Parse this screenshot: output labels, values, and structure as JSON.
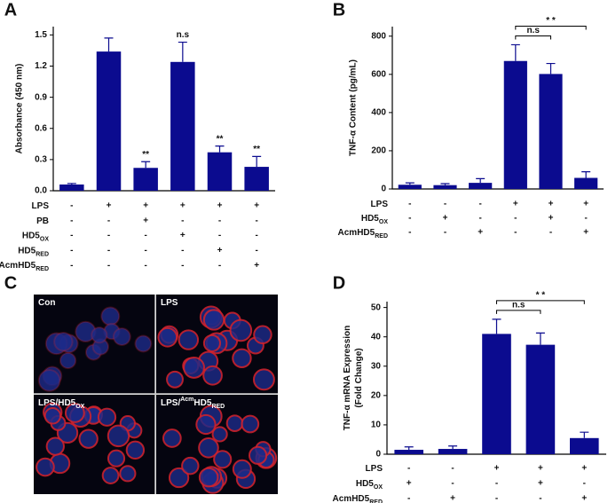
{
  "chart_data": [
    {
      "type": "bar",
      "panel_label": "A",
      "ylabel": [
        "Absorbance (450 nm)"
      ],
      "color": "#0b0b8f",
      "values": [
        0.06,
        1.34,
        0.22,
        1.24,
        0.37,
        0.23
      ],
      "errors": [
        0.01,
        0.13,
        0.06,
        0.19,
        0.06,
        0.1
      ],
      "significance": [
        null,
        null,
        "**",
        "n.s",
        "**",
        "**"
      ],
      "ylim": [
        0,
        1.58
      ],
      "yticks": [
        {
          "value": 0,
          "label": "0.0"
        },
        0.3,
        0.6,
        0.9,
        1.2,
        1.5
      ],
      "treatments": [
        {
          "label": {
            "main": "LPS"
          },
          "marks": [
            "-",
            "+",
            "+",
            "+",
            "+",
            "+"
          ]
        },
        {
          "label": {
            "main": "PB"
          },
          "marks": [
            "-",
            "-",
            "+",
            "-",
            "-",
            "-"
          ]
        },
        {
          "label": {
            "main": "HD5",
            "sub": "OX"
          },
          "marks": [
            "-",
            "-",
            "-",
            "+",
            "-",
            "-"
          ]
        },
        {
          "label": {
            "main": "HD5",
            "sub": "RED"
          },
          "marks": [
            "-",
            "-",
            "-",
            "-",
            "+",
            "-"
          ]
        },
        {
          "label": {
            "pre": "Acm",
            "main": "HD5",
            "sub": "RED"
          },
          "marks": [
            "-",
            "-",
            "-",
            "-",
            "-",
            "+"
          ]
        }
      ]
    },
    {
      "type": "bar",
      "panel_label": "B",
      "ylabel": [
        "TNF-α Content (pg/mL)"
      ],
      "color": "#0b0b8f",
      "values": [
        22,
        20,
        32,
        670,
        602,
        58
      ],
      "errors": [
        10,
        8,
        22,
        85,
        55,
        32
      ],
      "ylim": [
        0,
        850
      ],
      "yticks": [
        0,
        200,
        400,
        600,
        800
      ],
      "comparisons": [
        {
          "bars": [
            3,
            4
          ],
          "text": "n.s"
        },
        {
          "bars": [
            3,
            5
          ],
          "text": "* *"
        }
      ],
      "treatments": [
        {
          "label": {
            "main": "LPS"
          },
          "marks": [
            "-",
            "-",
            "-",
            "+",
            "+",
            "+"
          ]
        },
        {
          "label": {
            "main": "HD5",
            "sub": "OX"
          },
          "marks": [
            "-",
            "+",
            "-",
            "-",
            "+",
            "-"
          ]
        },
        {
          "label": {
            "pre": "Acm",
            "main": "HD5",
            "sub": "RED"
          },
          "marks": [
            "-",
            "-",
            "+",
            "-",
            "-",
            "+"
          ]
        }
      ]
    },
    {
      "type": "bar",
      "panel_label": "D",
      "ylabel": [
        "TNF-α mRNA Expression",
        "(Fold Change)"
      ],
      "color": "#0b0b8f",
      "values": [
        1.5,
        1.8,
        41,
        37.3,
        5.5
      ],
      "errors": [
        1,
        1,
        5,
        4,
        2
      ],
      "ylim": [
        0,
        52
      ],
      "yticks": [
        0,
        10,
        20,
        30,
        40,
        50
      ],
      "comparisons": [
        {
          "bars": [
            2,
            3
          ],
          "text": "n.s"
        },
        {
          "bars": [
            2,
            4
          ],
          "text": "* *"
        }
      ],
      "treatments": [
        {
          "label": {
            "main": "LPS"
          },
          "marks": [
            "-",
            "-",
            "+",
            "+",
            "+"
          ]
        },
        {
          "label": {
            "main": "HD5",
            "sub": "OX"
          },
          "marks": [
            "+",
            "-",
            "-",
            "+",
            "-"
          ]
        },
        {
          "label": {
            "pre": "Acm",
            "main": "HD5",
            "sub": "RED"
          },
          "marks": [
            "-",
            "+",
            "-",
            "-",
            "+"
          ]
        }
      ]
    }
  ],
  "image_panel": {
    "panel_label": "C",
    "captions": [
      {
        "main": "Con"
      },
      {
        "main": "LPS"
      },
      {
        "main": "LPS/HD5",
        "sub": "OX"
      },
      {
        "pre": "LPS/",
        "sup": "Acm",
        "main": "HD5",
        "sub": "RED"
      }
    ]
  }
}
